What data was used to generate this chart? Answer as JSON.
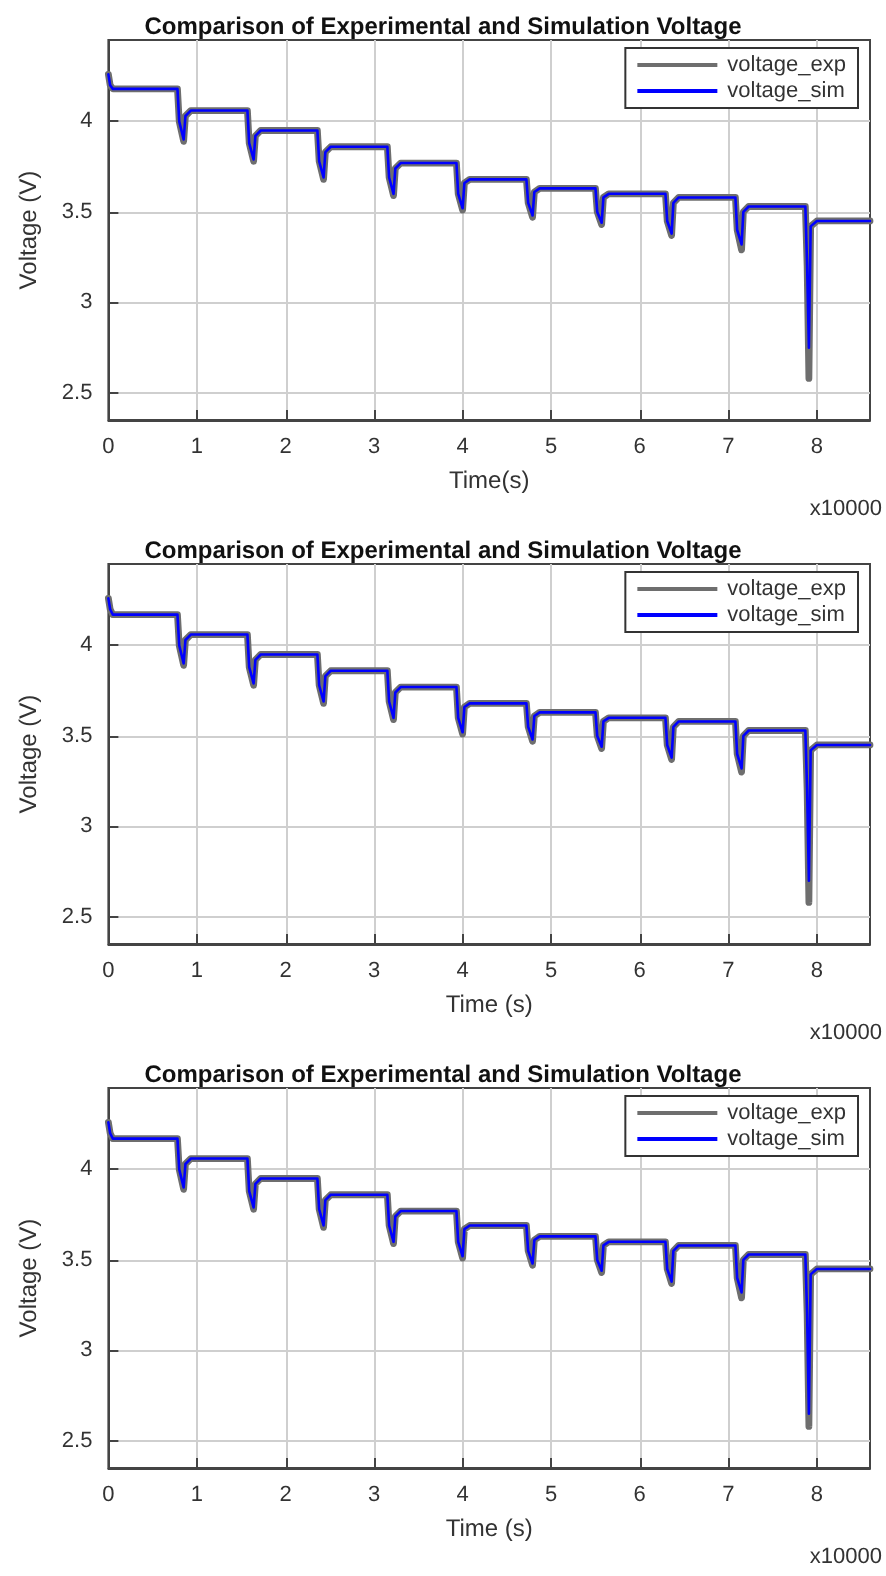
{
  "chart_data": [
    {
      "type": "line",
      "title": "Comparison of Experimental and Simulation Voltage",
      "xlabel": "Time(s)",
      "ylabel": "Voltage (V)",
      "annotations": [
        "x10000"
      ],
      "xlim": [
        0,
        8.6
      ],
      "xticks": [
        0,
        1,
        2,
        3,
        4,
        5,
        6,
        7,
        8
      ],
      "ylim": [
        2.35,
        4.45
      ],
      "yticks": [
        2.5,
        3,
        3.5,
        4
      ],
      "grid": true,
      "legend": "top right",
      "x": [
        0,
        0.02,
        0.05,
        0.78,
        0.8,
        0.85,
        0.87,
        0.93,
        1.57,
        1.59,
        1.64,
        1.66,
        1.72,
        2.36,
        2.38,
        2.43,
        2.45,
        2.51,
        3.15,
        3.17,
        3.22,
        3.24,
        3.3,
        3.93,
        3.95,
        4,
        4.02,
        4.08,
        4.72,
        4.74,
        4.79,
        4.81,
        4.87,
        5.5,
        5.52,
        5.57,
        5.59,
        5.65,
        6.29,
        6.31,
        6.36,
        6.38,
        6.44,
        7.08,
        7.1,
        7.15,
        7.17,
        7.23,
        7.87,
        7.89,
        7.91,
        7.93,
        8.0,
        8.6
      ],
      "series": [
        {
          "name": "voltage_exp",
          "color": "#6e6e6e",
          "values": [
            4.26,
            4.2,
            4.18,
            4.18,
            4.0,
            3.89,
            4.03,
            4.06,
            4.06,
            3.88,
            3.78,
            3.92,
            3.95,
            3.95,
            3.78,
            3.68,
            3.83,
            3.86,
            3.86,
            3.69,
            3.59,
            3.74,
            3.77,
            3.77,
            3.6,
            3.51,
            3.66,
            3.68,
            3.68,
            3.55,
            3.47,
            3.61,
            3.63,
            3.63,
            3.5,
            3.43,
            3.58,
            3.6,
            3.6,
            3.45,
            3.37,
            3.55,
            3.58,
            3.58,
            3.4,
            3.29,
            3.5,
            3.53,
            3.53,
            3.2,
            2.58,
            3.42,
            3.45,
            3.45
          ]
        },
        {
          "name": "voltage_sim",
          "color": "#0000ff",
          "values": [
            4.26,
            4.2,
            4.18,
            4.18,
            4.0,
            3.9,
            4.03,
            4.06,
            4.06,
            3.88,
            3.79,
            3.92,
            3.95,
            3.95,
            3.78,
            3.69,
            3.83,
            3.86,
            3.86,
            3.69,
            3.6,
            3.74,
            3.77,
            3.77,
            3.6,
            3.52,
            3.66,
            3.68,
            3.68,
            3.55,
            3.48,
            3.61,
            3.63,
            3.63,
            3.5,
            3.44,
            3.58,
            3.6,
            3.6,
            3.45,
            3.38,
            3.55,
            3.58,
            3.58,
            3.4,
            3.32,
            3.5,
            3.53,
            3.53,
            3.2,
            2.75,
            3.42,
            3.45,
            3.45
          ]
        }
      ]
    },
    {
      "type": "line",
      "title": "Comparison of Experimental and Simulation Voltage",
      "xlabel": "Time (s)",
      "ylabel": "Voltage (V)",
      "annotations": [
        "x10000"
      ],
      "xlim": [
        0,
        8.6
      ],
      "xticks": [
        0,
        1,
        2,
        3,
        4,
        5,
        6,
        7,
        8
      ],
      "ylim": [
        2.35,
        4.45
      ],
      "yticks": [
        2.5,
        3,
        3.5,
        4
      ],
      "grid": true,
      "legend": "top right",
      "x": [
        0,
        0.02,
        0.05,
        0.78,
        0.8,
        0.85,
        0.87,
        0.93,
        1.57,
        1.59,
        1.64,
        1.66,
        1.72,
        2.36,
        2.38,
        2.43,
        2.45,
        2.51,
        3.15,
        3.17,
        3.22,
        3.24,
        3.3,
        3.93,
        3.95,
        4,
        4.02,
        4.08,
        4.72,
        4.74,
        4.79,
        4.81,
        4.87,
        5.5,
        5.52,
        5.57,
        5.59,
        5.65,
        6.29,
        6.31,
        6.36,
        6.38,
        6.44,
        7.08,
        7.1,
        7.15,
        7.17,
        7.23,
        7.87,
        7.89,
        7.91,
        7.93,
        8.0,
        8.6
      ],
      "series": [
        {
          "name": "voltage_exp",
          "color": "#6e6e6e",
          "values": [
            4.26,
            4.2,
            4.17,
            4.17,
            4.0,
            3.89,
            4.03,
            4.06,
            4.06,
            3.88,
            3.78,
            3.92,
            3.95,
            3.95,
            3.78,
            3.68,
            3.83,
            3.86,
            3.86,
            3.69,
            3.59,
            3.74,
            3.77,
            3.77,
            3.6,
            3.51,
            3.66,
            3.68,
            3.68,
            3.55,
            3.47,
            3.61,
            3.63,
            3.63,
            3.5,
            3.43,
            3.58,
            3.6,
            3.6,
            3.45,
            3.37,
            3.55,
            3.58,
            3.58,
            3.4,
            3.3,
            3.5,
            3.53,
            3.53,
            3.2,
            2.58,
            3.42,
            3.45,
            3.45
          ]
        },
        {
          "name": "voltage_sim",
          "color": "#0000ff",
          "values": [
            4.26,
            4.2,
            4.17,
            4.17,
            4.0,
            3.9,
            4.03,
            4.06,
            4.06,
            3.88,
            3.79,
            3.92,
            3.95,
            3.95,
            3.78,
            3.69,
            3.83,
            3.86,
            3.86,
            3.69,
            3.6,
            3.74,
            3.77,
            3.77,
            3.6,
            3.52,
            3.66,
            3.68,
            3.68,
            3.55,
            3.48,
            3.61,
            3.63,
            3.63,
            3.5,
            3.44,
            3.58,
            3.6,
            3.6,
            3.45,
            3.38,
            3.55,
            3.58,
            3.58,
            3.4,
            3.32,
            3.5,
            3.53,
            3.53,
            3.2,
            2.7,
            3.42,
            3.45,
            3.45
          ]
        }
      ]
    },
    {
      "type": "line",
      "title": "Comparison of Experimental and Simulation Voltage",
      "xlabel": "Time (s)",
      "ylabel": "Voltage (V)",
      "annotations": [
        "x10000"
      ],
      "xlim": [
        0,
        8.6
      ],
      "xticks": [
        0,
        1,
        2,
        3,
        4,
        5,
        6,
        7,
        8
      ],
      "ylim": [
        2.35,
        4.45
      ],
      "yticks": [
        2.5,
        3,
        3.5,
        4
      ],
      "grid": true,
      "legend": "top right",
      "x": [
        0,
        0.02,
        0.05,
        0.78,
        0.8,
        0.85,
        0.87,
        0.93,
        1.57,
        1.59,
        1.64,
        1.66,
        1.72,
        2.36,
        2.38,
        2.43,
        2.45,
        2.51,
        3.15,
        3.17,
        3.22,
        3.24,
        3.3,
        3.93,
        3.95,
        4,
        4.02,
        4.08,
        4.72,
        4.74,
        4.79,
        4.81,
        4.87,
        5.5,
        5.52,
        5.57,
        5.59,
        5.65,
        6.29,
        6.31,
        6.36,
        6.38,
        6.44,
        7.08,
        7.1,
        7.15,
        7.17,
        7.23,
        7.87,
        7.89,
        7.91,
        7.93,
        8.0,
        8.6
      ],
      "series": [
        {
          "name": "voltage_exp",
          "color": "#6e6e6e",
          "values": [
            4.26,
            4.2,
            4.17,
            4.17,
            4.0,
            3.89,
            4.03,
            4.06,
            4.06,
            3.88,
            3.78,
            3.92,
            3.95,
            3.95,
            3.78,
            3.68,
            3.83,
            3.86,
            3.86,
            3.69,
            3.59,
            3.74,
            3.77,
            3.77,
            3.6,
            3.51,
            3.67,
            3.69,
            3.69,
            3.55,
            3.47,
            3.61,
            3.63,
            3.63,
            3.5,
            3.43,
            3.58,
            3.6,
            3.6,
            3.45,
            3.37,
            3.55,
            3.58,
            3.58,
            3.4,
            3.29,
            3.5,
            3.53,
            3.53,
            3.2,
            2.58,
            3.42,
            3.45,
            3.45
          ]
        },
        {
          "name": "voltage_sim",
          "color": "#0000ff",
          "values": [
            4.26,
            4.2,
            4.17,
            4.17,
            4.0,
            3.9,
            4.03,
            4.06,
            4.06,
            3.88,
            3.79,
            3.92,
            3.95,
            3.95,
            3.78,
            3.69,
            3.83,
            3.86,
            3.86,
            3.69,
            3.6,
            3.74,
            3.77,
            3.77,
            3.6,
            3.52,
            3.67,
            3.69,
            3.69,
            3.55,
            3.48,
            3.61,
            3.63,
            3.63,
            3.5,
            3.44,
            3.58,
            3.6,
            3.6,
            3.45,
            3.38,
            3.55,
            3.58,
            3.58,
            3.4,
            3.32,
            3.5,
            3.53,
            3.53,
            3.2,
            2.65,
            3.42,
            3.45,
            3.45
          ]
        }
      ]
    }
  ]
}
